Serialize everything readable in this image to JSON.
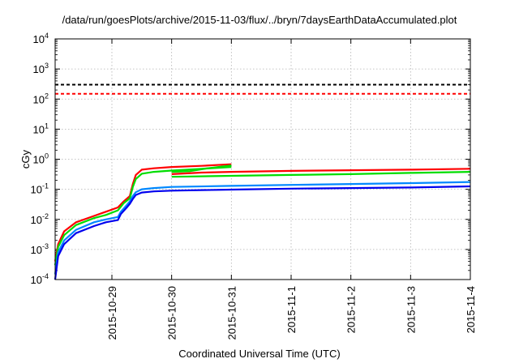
{
  "chart_data": {
    "type": "line",
    "title": "/data/run/goesPlots/archive/2015-11-03/flux/../bryn/7daysEarthDataAccumulated.plot",
    "xlabel": "Coordinated Universal Time (UTC)",
    "ylabel": "cGy",
    "yscale": "log",
    "ylim": [
      0.0001,
      10000
    ],
    "y_ticks": [
      {
        "base": "10",
        "exp": "-4",
        "value": 0.0001
      },
      {
        "base": "10",
        "exp": "-3",
        "value": 0.001
      },
      {
        "base": "10",
        "exp": "-2",
        "value": 0.01
      },
      {
        "base": "10",
        "exp": "-1",
        "value": 0.1
      },
      {
        "base": "10",
        "exp": "0",
        "value": 1
      },
      {
        "base": "10",
        "exp": "1",
        "value": 10
      },
      {
        "base": "10",
        "exp": "2",
        "value": 100
      },
      {
        "base": "10",
        "exp": "3",
        "value": 1000
      },
      {
        "base": "10",
        "exp": "4",
        "value": 10000
      }
    ],
    "x_range_days": [
      -0.95,
      6.0
    ],
    "x_ticks": [
      {
        "label": "2015-10-29",
        "day": 0
      },
      {
        "label": "2015-10-30",
        "day": 1
      },
      {
        "label": "2015-10-31",
        "day": 2
      },
      {
        "label": "2015-11-1",
        "day": 3
      },
      {
        "label": "2015-11-2",
        "day": 4
      },
      {
        "label": "2015-11-3",
        "day": 5
      },
      {
        "label": "2015-11-4",
        "day": 6
      }
    ],
    "grid": true,
    "thresholds": [
      {
        "value": 300,
        "color": "#000000",
        "style": "dashed"
      },
      {
        "value": 150,
        "color": "#ff0000",
        "style": "dashed"
      }
    ],
    "series": [
      {
        "color": "#ff0000",
        "points": [
          [
            -0.95,
            0.0004
          ],
          [
            -0.9,
            0.0015
          ],
          [
            -0.8,
            0.004
          ],
          [
            -0.6,
            0.008
          ],
          [
            -0.3,
            0.013
          ],
          [
            -0.1,
            0.018
          ],
          [
            0.1,
            0.025
          ],
          [
            0.2,
            0.04
          ],
          [
            0.3,
            0.06
          ],
          [
            0.35,
            0.15
          ],
          [
            0.4,
            0.3
          ],
          [
            0.5,
            0.45
          ],
          [
            0.7,
            0.5
          ],
          [
            1.0,
            0.55
          ],
          [
            1.5,
            0.6
          ],
          [
            2.0,
            0.68
          ]
        ]
      },
      {
        "color": "#ff0000",
        "points": [
          [
            1.0,
            0.32
          ],
          [
            1.5,
            0.36
          ],
          [
            2.0,
            0.38
          ],
          [
            3.0,
            0.41
          ],
          [
            4.0,
            0.43
          ],
          [
            5.0,
            0.45
          ],
          [
            6.0,
            0.48
          ]
        ]
      },
      {
        "color": "#00dd00",
        "points": [
          [
            -0.95,
            0.0003
          ],
          [
            -0.9,
            0.0012
          ],
          [
            -0.8,
            0.003
          ],
          [
            -0.6,
            0.0065
          ],
          [
            -0.3,
            0.011
          ],
          [
            -0.1,
            0.014
          ],
          [
            0.1,
            0.02
          ],
          [
            0.2,
            0.035
          ],
          [
            0.3,
            0.05
          ],
          [
            0.35,
            0.12
          ],
          [
            0.4,
            0.22
          ],
          [
            0.5,
            0.33
          ],
          [
            0.7,
            0.38
          ],
          [
            1.0,
            0.42
          ],
          [
            1.5,
            0.48
          ],
          [
            2.0,
            0.55
          ]
        ]
      },
      {
        "color": "#00dd00",
        "points": [
          [
            1.0,
            0.26
          ],
          [
            2.0,
            0.28
          ],
          [
            3.0,
            0.3
          ],
          [
            4.0,
            0.32
          ],
          [
            5.0,
            0.35
          ],
          [
            6.0,
            0.38
          ]
        ]
      },
      {
        "color": "#00dd00",
        "points": [
          [
            1.0,
            0.38
          ],
          [
            1.3,
            0.4
          ],
          [
            1.6,
            0.5
          ],
          [
            2.0,
            0.62
          ]
        ]
      },
      {
        "color": "#0088ff",
        "points": [
          [
            -0.95,
            0.00015
          ],
          [
            -0.9,
            0.0008
          ],
          [
            -0.8,
            0.002
          ],
          [
            -0.6,
            0.0045
          ],
          [
            -0.3,
            0.008
          ],
          [
            -0.1,
            0.01
          ],
          [
            0.1,
            0.012
          ],
          [
            0.15,
            0.018
          ],
          [
            0.25,
            0.03
          ],
          [
            0.3,
            0.04
          ],
          [
            0.35,
            0.06
          ],
          [
            0.4,
            0.08
          ],
          [
            0.5,
            0.1
          ],
          [
            0.7,
            0.11
          ],
          [
            1.0,
            0.12
          ],
          [
            2.0,
            0.13
          ],
          [
            3.0,
            0.14
          ],
          [
            4.0,
            0.15
          ],
          [
            5.0,
            0.16
          ],
          [
            6.0,
            0.175
          ]
        ]
      },
      {
        "color": "#0000ee",
        "points": [
          [
            -0.95,
            0.0001
          ],
          [
            -0.9,
            0.0006
          ],
          [
            -0.8,
            0.0015
          ],
          [
            -0.6,
            0.0035
          ],
          [
            -0.3,
            0.006
          ],
          [
            -0.1,
            0.008
          ],
          [
            0.1,
            0.0095
          ],
          [
            0.15,
            0.015
          ],
          [
            0.25,
            0.025
          ],
          [
            0.3,
            0.033
          ],
          [
            0.35,
            0.048
          ],
          [
            0.4,
            0.065
          ],
          [
            0.5,
            0.078
          ],
          [
            0.7,
            0.085
          ],
          [
            1.0,
            0.09
          ],
          [
            2.0,
            0.098
          ],
          [
            3.0,
            0.105
          ],
          [
            4.0,
            0.11
          ],
          [
            5.0,
            0.115
          ],
          [
            6.0,
            0.125
          ]
        ]
      }
    ]
  }
}
